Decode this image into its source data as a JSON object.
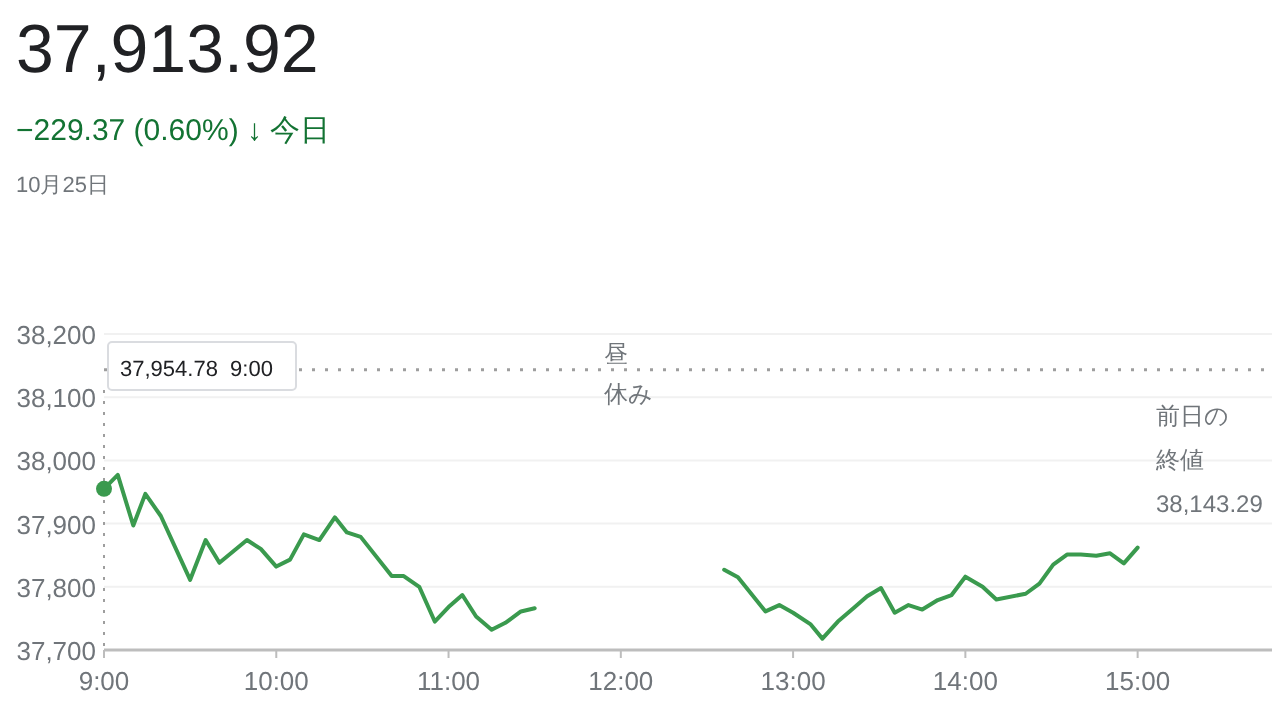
{
  "chart_data": {
    "type": "line",
    "title": "37,913.92",
    "subtitle": "−229.37 (0.60%) ↓ 今日",
    "annotations": [
      "10月25日",
      "昼",
      "休み",
      "37,954.78  9:00"
    ],
    "x": [
      9.0,
      9.08,
      9.17,
      9.24,
      9.33,
      9.5,
      9.59,
      9.67,
      9.83,
      9.91,
      10.0,
      10.08,
      10.16,
      10.25,
      10.34,
      10.41,
      10.49,
      10.67,
      10.74,
      10.83,
      10.92,
      11.0,
      11.08,
      11.16,
      11.25,
      11.33,
      11.42,
      11.5,
      12.6,
      12.68,
      12.84,
      12.92,
      13.0,
      13.1,
      13.17,
      13.26,
      13.35,
      13.43,
      13.51,
      13.59,
      13.67,
      13.75,
      13.84,
      13.92,
      14.0,
      14.1,
      14.18,
      14.35,
      14.43,
      14.51,
      14.59,
      14.67,
      14.76,
      14.84,
      14.92,
      15.0
    ],
    "series": [
      {
        "color": "#3a9a4e",
        "values": [
          37955,
          37977,
          37897,
          37947,
          37912,
          37811,
          37874,
          37838,
          37874,
          37860,
          37832,
          37843,
          37883,
          37874,
          37910,
          37886,
          37879,
          37817,
          37817,
          37800,
          37745,
          37768,
          37787,
          37753,
          37732,
          37743,
          37761,
          37766,
          37827,
          37815,
          37761,
          37771,
          37759,
          37741,
          37718,
          37745,
          37766,
          37785,
          37798,
          37759,
          37771,
          37764,
          37779,
          37787,
          37816,
          37800,
          37780,
          37789,
          37805,
          37835,
          37851,
          37851,
          37849,
          37853,
          37837,
          37862
        ]
      }
    ],
    "xlim": [
      9,
      15.78
    ],
    "ylim": [
      37700,
      38200
    ],
    "xticks": [
      {
        "value": 9,
        "label": "9:00"
      },
      {
        "value": 10,
        "label": "10:00"
      },
      {
        "value": 11,
        "label": "11:00"
      },
      {
        "value": 12,
        "label": "12:00"
      },
      {
        "value": 13,
        "label": "13:00"
      },
      {
        "value": 14,
        "label": "14:00"
      },
      {
        "value": 15,
        "label": "15:00"
      }
    ],
    "yticks": [
      {
        "value": 37700,
        "label": "37,700"
      },
      {
        "value": 37800,
        "label": "37,800"
      },
      {
        "value": 37900,
        "label": "37,900"
      },
      {
        "value": 38000,
        "label": "38,000"
      },
      {
        "value": 38100,
        "label": "38,100"
      },
      {
        "value": 38200,
        "label": "38,200"
      }
    ],
    "ref_lines": [
      {
        "axis": "y",
        "value": 38143.29,
        "label": "前日の終値38,143.29",
        "line_style": "dotted",
        "color": "#9e9e9e"
      }
    ],
    "grid": "y",
    "marker": "none",
    "line_style": "solid"
  }
}
